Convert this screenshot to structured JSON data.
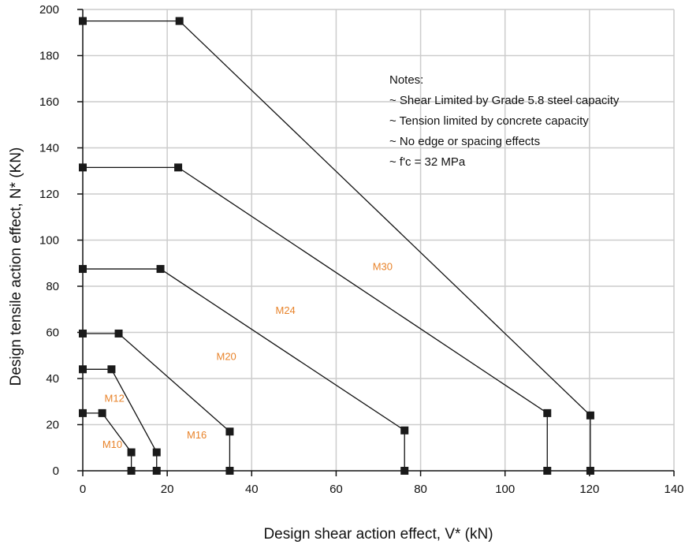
{
  "chart_data": {
    "type": "line",
    "xlabel": "Design shear action effect, V* (kN)",
    "ylabel": "Design tensile action effect, N* (KN)",
    "xlim": [
      0,
      140
    ],
    "ylim": [
      0,
      200
    ],
    "x_ticks": [
      "0",
      "20",
      "40",
      "60",
      "80",
      "100",
      "120",
      "140"
    ],
    "y_ticks": [
      "0",
      "20",
      "40",
      "60",
      "80",
      "100",
      "120",
      "140",
      "160",
      "180",
      "200"
    ],
    "grid": true,
    "notes": [
      "Notes:",
      "~ Shear Limited by Grade 5.8 steel capacity",
      "~ Tension limited by concrete capacity",
      "~ No edge or spacing effects",
      "~ f'c = 32 MPa"
    ],
    "series": [
      {
        "name": "M10",
        "points": [
          [
            0,
            25
          ],
          [
            4.6,
            25
          ],
          [
            11.5,
            8
          ],
          [
            11.5,
            0
          ]
        ]
      },
      {
        "name": "M12",
        "points": [
          [
            0,
            44
          ],
          [
            6.8,
            44
          ],
          [
            17.5,
            8
          ],
          [
            17.5,
            0
          ]
        ]
      },
      {
        "name": "M16",
        "points": [
          [
            0,
            59.5
          ],
          [
            8.5,
            59.5
          ],
          [
            34.8,
            17
          ],
          [
            34.8,
            0
          ]
        ]
      },
      {
        "name": "M20",
        "points": [
          [
            0,
            87.5
          ],
          [
            18.4,
            87.5
          ],
          [
            76.2,
            17.5
          ],
          [
            76.2,
            0
          ]
        ]
      },
      {
        "name": "M24",
        "points": [
          [
            0,
            131.5
          ],
          [
            22.6,
            131.5
          ],
          [
            110,
            25
          ],
          [
            110,
            0
          ]
        ]
      },
      {
        "name": "M30",
        "points": [
          [
            0,
            195
          ],
          [
            22.9,
            195
          ],
          [
            120.2,
            24
          ],
          [
            120.2,
            0
          ]
        ]
      }
    ],
    "series_label_positions": [
      {
        "name": "M10",
        "x": 7,
        "y": 10
      },
      {
        "name": "M12",
        "x": 7.5,
        "y": 30
      },
      {
        "name": "M16",
        "x": 27,
        "y": 14
      },
      {
        "name": "M20",
        "x": 34,
        "y": 48
      },
      {
        "name": "M24",
        "x": 48,
        "y": 68
      },
      {
        "name": "M30",
        "x": 71,
        "y": 87
      }
    ],
    "colors": {
      "line": "#111111",
      "marker": "#1a1a1a",
      "grid": "#cccccc",
      "series_label": "#e8832a"
    }
  }
}
